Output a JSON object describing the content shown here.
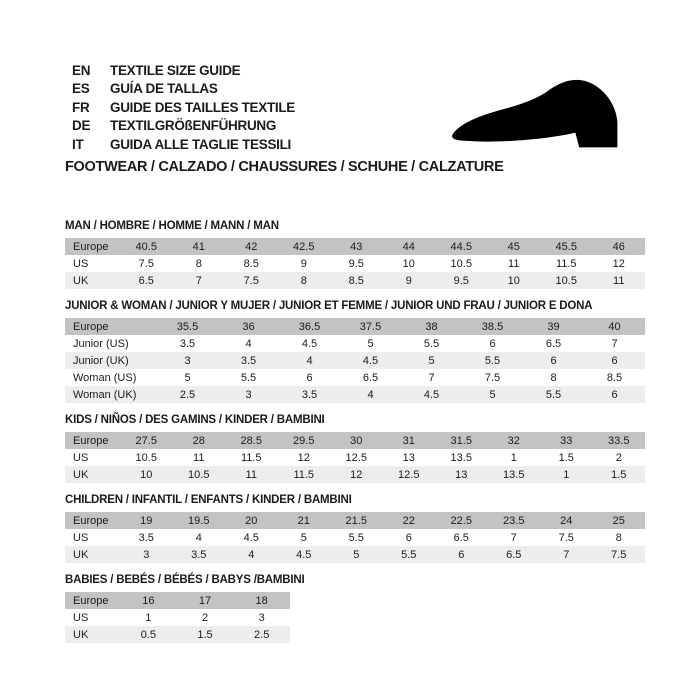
{
  "header": {
    "languages": [
      {
        "code": "EN",
        "text": "TEXTILE SIZE GUIDE"
      },
      {
        "code": "ES",
        "text": "GUÍA DE TALLAS"
      },
      {
        "code": "FR",
        "text": "GUIDE DES TAILLES TEXTILE"
      },
      {
        "code": "DE",
        "text": "TEXTILGRÖßENFÜHRUNG"
      },
      {
        "code": "IT",
        "text": "GUIDA ALLE TAGLIE TESSILI"
      }
    ],
    "category_line": "FOOTWEAR / CALZADO / CHAUSSURES / SCHUHE / CALZATURE",
    "shoe_icon": "dress-shoe-silhouette"
  },
  "colors": {
    "header_row_bg": "#c3c3c3",
    "alt_row_bg": "#ededed",
    "text": "#1b1b1b",
    "shoe": "#000000"
  },
  "tables": [
    {
      "id": "man",
      "title": "MAN / HOMBRE / HOMME / MANN / MAN",
      "rows": [
        {
          "label": "Europe",
          "values": [
            "40.5",
            "41",
            "42",
            "42.5",
            "43",
            "44",
            "44.5",
            "45",
            "45.5",
            "46"
          ]
        },
        {
          "label": "US",
          "values": [
            "7.5",
            "8",
            "8.5",
            "9",
            "9.5",
            "10",
            "10.5",
            "11",
            "11.5",
            "12"
          ]
        },
        {
          "label": "UK",
          "values": [
            "6.5",
            "7",
            "7.5",
            "8",
            "8.5",
            "9",
            "9.5",
            "10",
            "10.5",
            "11"
          ]
        }
      ]
    },
    {
      "id": "junior-woman",
      "title": "JUNIOR & WOMAN / JUNIOR Y MUJER / JUNIOR ET FEMME / JUNIOR UND FRAU / JUNIOR E DONA",
      "rows": [
        {
          "label": "Europe",
          "values": [
            "35.5",
            "36",
            "36.5",
            "37.5",
            "38",
            "38.5",
            "39",
            "40"
          ]
        },
        {
          "label": "Junior (US)",
          "values": [
            "3.5",
            "4",
            "4.5",
            "5",
            "5.5",
            "6",
            "6.5",
            "7"
          ]
        },
        {
          "label": "Junior (UK)",
          "values": [
            "3",
            "3.5",
            "4",
            "4.5",
            "5",
            "5.5",
            "6",
            "6"
          ]
        },
        {
          "label": "Woman (US)",
          "values": [
            "5",
            "5.5",
            "6",
            "6.5",
            "7",
            "7.5",
            "8",
            "8.5"
          ]
        },
        {
          "label": "Woman (UK)",
          "values": [
            "2.5",
            "3",
            "3.5",
            "4",
            "4.5",
            "5",
            "5.5",
            "6"
          ]
        }
      ]
    },
    {
      "id": "kids",
      "title": "KIDS / NIÑOS / DES GAMINS / KINDER / BAMBINI",
      "rows": [
        {
          "label": "Europe",
          "values": [
            "27.5",
            "28",
            "28.5",
            "29.5",
            "30",
            "31",
            "31.5",
            "32",
            "33",
            "33.5"
          ]
        },
        {
          "label": "US",
          "values": [
            "10.5",
            "11",
            "11.5",
            "12",
            "12.5",
            "13",
            "13.5",
            "1",
            "1.5",
            "2"
          ]
        },
        {
          "label": "UK",
          "values": [
            "10",
            "10.5",
            "11",
            "11.5",
            "12",
            "12.5",
            "13",
            "13.5",
            "1",
            "1.5"
          ]
        }
      ]
    },
    {
      "id": "children",
      "title": "CHILDREN / INFANTIL / ENFANTS / KINDER / BAMBINI",
      "rows": [
        {
          "label": "Europe",
          "values": [
            "19",
            "19.5",
            "20",
            "21",
            "21.5",
            "22",
            "22.5",
            "23.5",
            "24",
            "25"
          ]
        },
        {
          "label": "US",
          "values": [
            "3.5",
            "4",
            "4.5",
            "5",
            "5.5",
            "6",
            "6.5",
            "7",
            "7.5",
            "8"
          ]
        },
        {
          "label": "UK",
          "values": [
            "3",
            "3.5",
            "4",
            "4.5",
            "5",
            "5.5",
            "6",
            "6.5",
            "7",
            "7.5"
          ]
        }
      ]
    },
    {
      "id": "babies",
      "title": "BABIES / BEBÉS / BÉBÉS / BABYS /BAMBINI",
      "rows": [
        {
          "label": "Europe",
          "values": [
            "16",
            "17",
            "18"
          ]
        },
        {
          "label": "US",
          "values": [
            "1",
            "2",
            "3"
          ]
        },
        {
          "label": "UK",
          "values": [
            "0.5",
            "1.5",
            "2.5"
          ]
        }
      ]
    }
  ]
}
